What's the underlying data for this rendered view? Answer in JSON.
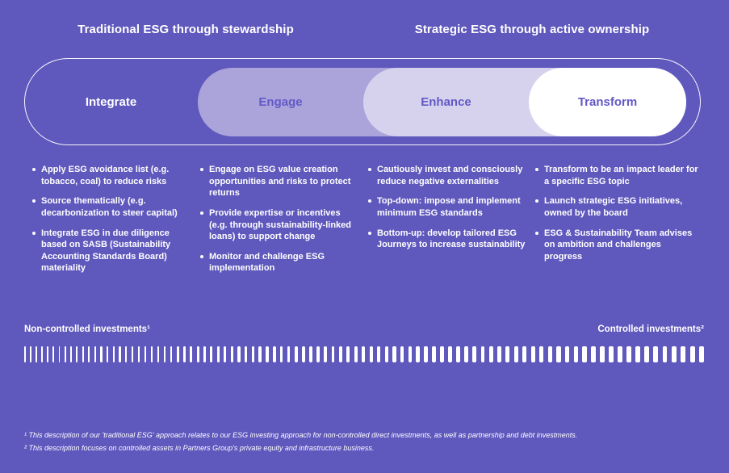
{
  "header": {
    "left": "Traditional ESG through stewardship",
    "right": "Strategic ESG through active ownership"
  },
  "stages": [
    {
      "label": "Integrate",
      "bullets": [
        "Apply ESG avoidance list (e.g. tobacco, coal) to reduce risks",
        "Source thematically (e.g. decarbonization to steer capital)",
        "Integrate ESG in due diligence based on SASB (Sustainability Accounting Standards Board) materiality"
      ]
    },
    {
      "label": "Engage",
      "bullets": [
        "Engage on ESG value creation opportunities and risks to protect returns",
        "Provide expertise or incentives (e.g. through sustainability-linked loans) to support change",
        "Monitor and challenge ESG implementation"
      ]
    },
    {
      "label": "Enhance",
      "bullets": [
        "Cautiously invest and consciously reduce negative externalities",
        "Top-down: impose and implement minimum ESG standards",
        "Bottom-up: develop tailored ESG Journeys to increase sustainability"
      ]
    },
    {
      "label": "Transform",
      "bullets": [
        "Transform to be an impact leader for a specific ESG topic",
        "Launch strategic ESG initiatives, owned by the board",
        "ESG & Sustainability Team advises on ambition and challenges progress"
      ]
    }
  ],
  "scale": {
    "left_label": "Non-controlled investments¹",
    "right_label": "Controlled investments²",
    "tick_count": 92,
    "tick_min_width": 1.5,
    "tick_max_width": 6
  },
  "footnotes": [
    "¹ This description of our 'traditional ESG' approach relates to our ESG investing approach for non-controlled direct investments, as well as partnership and debt investments.",
    "² This description focuses on controlled assets in Partners Group's private equity and infrastructure business."
  ],
  "colors": {
    "background": "#5f58bd",
    "engage_pill": "#aba4db",
    "enhance_pill": "#d6d2ee",
    "transform_pill": "#ffffff",
    "stage_text": "#6359c6",
    "text": "#ffffff"
  }
}
